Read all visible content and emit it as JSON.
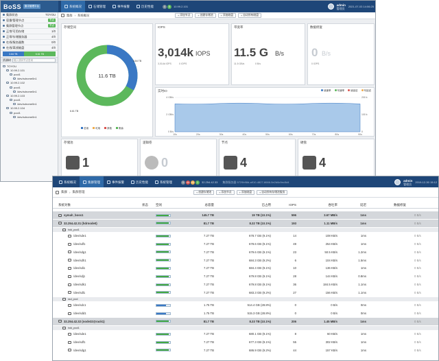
{
  "back": {
    "logo": "BoSS",
    "logo_sub": "集中管理平台",
    "nav": [
      "系统概况",
      "石储管理",
      "事件报警",
      "历史性能"
    ],
    "badges": [
      {
        "t": "0",
        "c": "#7a8a99"
      },
      {
        "t": "5",
        "c": "#5cb85c"
      }
    ],
    "ip": "10.99.2.101",
    "user": "admin",
    "user_role": "管理员",
    "datetime": "2021-07-03 14:06:25",
    "sidebar": [
      {
        "label": "集群状态",
        "right": "TOYOU"
      },
      {
        "label": "容量/管理节点",
        "right": "节点"
      },
      {
        "label": "集群管理节点",
        "right": "节点"
      },
      {
        "label": "正常/可用存储",
        "right": "1/0"
      },
      {
        "label": "正常/存储服务器",
        "right": "4/0"
      },
      {
        "label": "在线/服务器数",
        "right": "0/0"
      },
      {
        "label": "在线/离线磁盘",
        "right": "4/0"
      }
    ],
    "sidebar_bar": [
      "3.84 TB",
      "6.61 TB"
    ],
    "tree_head": "资源树",
    "tree_search": "输入或树节点查询",
    "tree": [
      "TOYOU",
      "10.99.2.101",
      "pool1",
      "/dev/sdrome0n1",
      "10.99.2.102",
      "pool1",
      "/dev/sdrome0n1",
      "10.99.2.103",
      "pool1",
      "/dev/sdrome0n1",
      "10.99.2.104",
      "pool1",
      "/dev/sdrome0n1"
    ],
    "crumb": [
      "集群",
      "系统概况"
    ],
    "toolbar": [
      "添加节点",
      "创建存储池",
      "添加磁盘",
      "自动所有磁盘"
    ],
    "capacity": {
      "title": "存储空间",
      "total": "11.6 TB",
      "used": "3.84 TB",
      "free": "6.61 TB",
      "used_frac": 0.33,
      "legend": [
        "总用",
        "可用",
        "其他",
        "剩余"
      ]
    },
    "iops": {
      "title": "IOPS",
      "value": "3,014k",
      "unit": "IOPS",
      "sub1": "3,014k IOPS",
      "sub2": "0 IOPS"
    },
    "bw": {
      "title": "带宽率",
      "value": "11.5 G",
      "unit": "B/s",
      "sub1": "11.5 GB/s",
      "sub2": "0 B/s"
    },
    "rep": {
      "title": "数据修复",
      "value": "0",
      "unit": "B/s",
      "sub1": "0 IOPS"
    },
    "perf": {
      "title": "实时IO",
      "legend": [
        "读速率",
        "写速率",
        "读延迟",
        "写延迟"
      ],
      "yleft": [
        "4 GB/s",
        "2 GB/s",
        "0 B/s"
      ],
      "yright": [
        "200 k",
        "100 k",
        "0"
      ],
      "ytitle": "速率(B/s)",
      "xticks": [
        "10s",
        "20s",
        "30s",
        "40s",
        "50s",
        "60s",
        "70s",
        "80s",
        "90s"
      ]
    },
    "bottom": [
      {
        "title": "存储池",
        "value": "1"
      },
      {
        "title": "逻辑卷",
        "value": "0"
      },
      {
        "title": "节点",
        "value": "4"
      },
      {
        "title": "硬盘",
        "value": "4"
      }
    ]
  },
  "front": {
    "nav": [
      "系统概况",
      "集群管理",
      "事件报警",
      "历史性能",
      "系统管理"
    ],
    "badges": [
      {
        "t": "0",
        "c": "#7a8a99"
      },
      {
        "t": "44",
        "c": "#d9534f"
      },
      {
        "t": "44",
        "c": "#f0ad4e"
      },
      {
        "t": "1",
        "c": "#5cb85c"
      }
    ],
    "ip": "32.254.42.33",
    "notice": "集群服务器 5729b98d-a910-4827-8666-5e2d6c9ec5d4",
    "user": "admin",
    "user_role": "管理员",
    "datetime": "2019-12-30 15:12",
    "crumb": [
      "集群",
      "集群管理"
    ],
    "toolbar": [
      "创建存储池",
      "添加节点",
      "添加磁盘",
      "自动所有存储池服务"
    ],
    "columns": [
      "系统对象",
      "状态",
      "空闲",
      "总容量",
      "已占用",
      "IOPS",
      "吞吐率",
      "延迟",
      "数据修复"
    ],
    "rows": [
      {
        "type": "cluster",
        "name": "symah_boss1",
        "pct": 0.9,
        "total": "145.7 TB",
        "used": "19 TB (10.1%)",
        "iops": "596",
        "tp": "3.67 MB/s",
        "lat": "1ms",
        "rep": "0 B/s"
      },
      {
        "type": "node",
        "name": "32.254.42.31 (hdrnode0)",
        "pct": 0.9,
        "total": "81.7 TB",
        "used": "8.32 TB (10.1%)",
        "iops": "193",
        "tp": "1.11 MB/s",
        "lat": "1ms",
        "rep": "0 B/s"
      },
      {
        "type": "pool",
        "name": "hdd_pool1"
      },
      {
        "type": "disk",
        "name": "/dev/sde1",
        "pct": 0.9,
        "total": "7.27 TB",
        "used": "678.7 GB (9.1%)",
        "iops": "14",
        "tp": "108 KB/s",
        "lat": "1ms",
        "rep": "0 B/s"
      },
      {
        "type": "disk",
        "name": "/dev/sdf1",
        "pct": 0.9,
        "total": "7.27 TB",
        "used": "678.6 GB (9.1%)",
        "iops": "49",
        "tp": "254 KB/s",
        "lat": "1ms",
        "rep": "0 B/s"
      },
      {
        "type": "disk",
        "name": "/dev/sdg1",
        "pct": 0.9,
        "total": "7.27 TB",
        "used": "679.6 GB (9.1%)",
        "iops": "23",
        "tp": "50.5 KB/s",
        "lat": "1.2ms",
        "rep": "0 B/s"
      },
      {
        "type": "disk",
        "name": "/dev/sdh1",
        "pct": 0.9,
        "total": "7.27 TB",
        "used": "684.3 GB (9.2%)",
        "iops": "6",
        "tp": "104 KB/s",
        "lat": "1.5ms",
        "rep": "0 B/s"
      },
      {
        "type": "disk",
        "name": "/dev/sdi1",
        "pct": 0.9,
        "total": "7.27 TB",
        "used": "684.4 GB (9.1%)",
        "iops": "10",
        "tp": "136 KB/s",
        "lat": "1ms",
        "rep": "0 B/s"
      },
      {
        "type": "disk",
        "name": "/dev/sdj1",
        "pct": 0.9,
        "total": "7.27 TB",
        "used": "679.8 GB (9.1%)",
        "iops": "28",
        "tp": "144 KB/s",
        "lat": "0.8ms",
        "rep": "0 B/s"
      },
      {
        "type": "disk",
        "name": "/dev/sdk1",
        "pct": 0.9,
        "total": "7.27 TB",
        "used": "679.8 GB (9.1%)",
        "iops": "36",
        "tp": "184.5 KB/s",
        "lat": "1.1ms",
        "rep": "0 B/s"
      },
      {
        "type": "disk",
        "name": "/dev/sdl1",
        "pct": 0.9,
        "total": "7.27 TB",
        "used": "683.3 GB (9.2%)",
        "iops": "27",
        "tp": "156 KB/s",
        "lat": "1.1ms",
        "rep": "0 B/s"
      },
      {
        "type": "pool",
        "name": "ssd_pool"
      },
      {
        "type": "disk",
        "name": "/dev/sdc1",
        "pct": 0.72,
        "blue": true,
        "total": "1.75 TB",
        "used": "514.4 GB (28.8%)",
        "iops": "0",
        "tp": "0 B/s",
        "lat": "0ms",
        "rep": "0 B/s"
      },
      {
        "type": "disk",
        "name": "/dev/sdd1",
        "pct": 0.72,
        "blue": true,
        "total": "1.75 TB",
        "used": "515.3 GB (28.8%)",
        "iops": "0",
        "tp": "0 B/s",
        "lat": "0ms",
        "rep": "0 B/s"
      },
      {
        "type": "node",
        "name": "32.254.42.32 (node32@rack1)",
        "pct": 0.9,
        "total": "81.7 TB",
        "used": "8.33 TB (10.1%)",
        "iops": "206",
        "tp": "1.45 MB/s",
        "lat": "1ms",
        "rep": "0 B/s"
      },
      {
        "type": "pool",
        "name": "hdd_pool1"
      },
      {
        "type": "disk",
        "name": "/dev/sde1",
        "pct": 0.9,
        "total": "7.27 TB",
        "used": "680.1 GB (9.1%)",
        "iops": "8",
        "tp": "60 KB/s",
        "lat": "1ms",
        "rep": "0 B/s"
      },
      {
        "type": "disk",
        "name": "/dev/sdf1",
        "pct": 0.9,
        "total": "7.27 TB",
        "used": "677.3 GB (9.1%)",
        "iops": "55",
        "tp": "302 KB/s",
        "lat": "1ms",
        "rep": "0 B/s"
      },
      {
        "type": "disk",
        "name": "/dev/sdg1",
        "pct": 0.9,
        "total": "7.27 TB",
        "used": "686.9 GB (9.2%)",
        "iops": "44",
        "tp": "157 KB/s",
        "lat": "1ms",
        "rep": "0 B/s"
      }
    ]
  }
}
